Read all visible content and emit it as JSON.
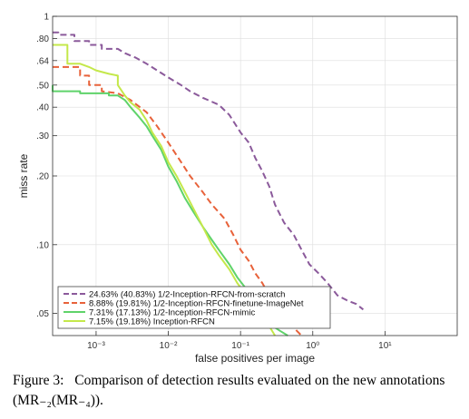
{
  "chart_data": {
    "type": "line",
    "xlabel": "false positives per image",
    "ylabel": "miss rate",
    "x_scale": "log",
    "y_scale": "log",
    "xlim": [
      0.00025,
      100
    ],
    "ylim": [
      0.04,
      1
    ],
    "x_ticks": [
      {
        "value": 0.001,
        "label": "10⁻³"
      },
      {
        "value": 0.01,
        "label": "10⁻²"
      },
      {
        "value": 0.1,
        "label": "10⁻¹"
      },
      {
        "value": 1,
        "label": "10⁰"
      },
      {
        "value": 10,
        "label": "10¹"
      }
    ],
    "y_ticks": [
      {
        "value": 1,
        "label": "1"
      },
      {
        "value": 0.8,
        "label": ".80"
      },
      {
        "value": 0.64,
        "label": ".64"
      },
      {
        "value": 0.5,
        "label": ".50"
      },
      {
        "value": 0.4,
        "label": ".40"
      },
      {
        "value": 0.3,
        "label": ".30"
      },
      {
        "value": 0.2,
        "label": ".20"
      },
      {
        "value": 0.1,
        "label": ".10"
      },
      {
        "value": 0.05,
        "label": ".05"
      }
    ],
    "grid": true,
    "legend_position": "bottom-left",
    "series": [
      {
        "name": "24.63% (40.83%) 1/2-Inception-RFCN-from-scratch",
        "color": "#8b5a9b",
        "dash": "dashed",
        "points": [
          [
            0.00025,
            0.85
          ],
          [
            0.0003,
            0.85
          ],
          [
            0.0003,
            0.83
          ],
          [
            0.0005,
            0.83
          ],
          [
            0.0005,
            0.78
          ],
          [
            0.0008,
            0.78
          ],
          [
            0.0008,
            0.75
          ],
          [
            0.0012,
            0.75
          ],
          [
            0.0012,
            0.72
          ],
          [
            0.002,
            0.72
          ],
          [
            0.0025,
            0.69
          ],
          [
            0.0035,
            0.66
          ],
          [
            0.005,
            0.62
          ],
          [
            0.007,
            0.58
          ],
          [
            0.01,
            0.54
          ],
          [
            0.015,
            0.5
          ],
          [
            0.02,
            0.47
          ],
          [
            0.03,
            0.44
          ],
          [
            0.05,
            0.41
          ],
          [
            0.07,
            0.37
          ],
          [
            0.1,
            0.31
          ],
          [
            0.13,
            0.28
          ],
          [
            0.16,
            0.24
          ],
          [
            0.2,
            0.21
          ],
          [
            0.25,
            0.18
          ],
          [
            0.3,
            0.15
          ],
          [
            0.4,
            0.125
          ],
          [
            0.55,
            0.11
          ],
          [
            0.7,
            0.095
          ],
          [
            0.9,
            0.082
          ],
          [
            1.2,
            0.075
          ],
          [
            1.6,
            0.068
          ],
          [
            2.2,
            0.06
          ],
          [
            3,
            0.057
          ],
          [
            4,
            0.055
          ],
          [
            5,
            0.052
          ]
        ]
      },
      {
        "name": "8.88% (19.81%) 1/2-Inception-RFCN-finetune-ImageNet",
        "color": "#e8623a",
        "dash": "dashed",
        "points": [
          [
            0.00025,
            0.6
          ],
          [
            0.0006,
            0.6
          ],
          [
            0.0006,
            0.55
          ],
          [
            0.0008,
            0.55
          ],
          [
            0.0008,
            0.5
          ],
          [
            0.0012,
            0.5
          ],
          [
            0.0012,
            0.47
          ],
          [
            0.002,
            0.46
          ],
          [
            0.003,
            0.43
          ],
          [
            0.005,
            0.38
          ],
          [
            0.007,
            0.33
          ],
          [
            0.01,
            0.28
          ],
          [
            0.015,
            0.23
          ],
          [
            0.02,
            0.2
          ],
          [
            0.03,
            0.17
          ],
          [
            0.04,
            0.15
          ],
          [
            0.06,
            0.13
          ],
          [
            0.08,
            0.11
          ],
          [
            0.1,
            0.095
          ],
          [
            0.13,
            0.085
          ],
          [
            0.16,
            0.075
          ],
          [
            0.2,
            0.068
          ],
          [
            0.25,
            0.06
          ],
          [
            0.3,
            0.055
          ],
          [
            0.4,
            0.05
          ],
          [
            0.5,
            0.045
          ],
          [
            0.6,
            0.042
          ],
          [
            0.7,
            0.04
          ]
        ]
      },
      {
        "name": "7.31% (17.13%) 1/2-Inception-RFCN-mimic",
        "color": "#5fd36a",
        "dash": "solid",
        "points": [
          [
            0.00025,
            0.5
          ],
          [
            0.00025,
            0.47
          ],
          [
            0.0006,
            0.47
          ],
          [
            0.0006,
            0.46
          ],
          [
            0.0015,
            0.46
          ],
          [
            0.0015,
            0.45
          ],
          [
            0.002,
            0.45
          ],
          [
            0.0025,
            0.43
          ],
          [
            0.003,
            0.4
          ],
          [
            0.004,
            0.36
          ],
          [
            0.005,
            0.33
          ],
          [
            0.006,
            0.3
          ],
          [
            0.008,
            0.26
          ],
          [
            0.01,
            0.22
          ],
          [
            0.013,
            0.19
          ],
          [
            0.017,
            0.16
          ],
          [
            0.022,
            0.14
          ],
          [
            0.03,
            0.12
          ],
          [
            0.04,
            0.105
          ],
          [
            0.05,
            0.095
          ],
          [
            0.07,
            0.082
          ],
          [
            0.09,
            0.072
          ],
          [
            0.12,
            0.064
          ],
          [
            0.15,
            0.058
          ],
          [
            0.2,
            0.05
          ],
          [
            0.25,
            0.045
          ],
          [
            0.35,
            0.042
          ],
          [
            0.45,
            0.04
          ]
        ]
      },
      {
        "name": "7.15% (19.18%) Inception-RFCN",
        "color": "#c4e84a",
        "dash": "solid",
        "points": [
          [
            0.00025,
            0.75
          ],
          [
            0.0004,
            0.75
          ],
          [
            0.0004,
            0.62
          ],
          [
            0.0006,
            0.62
          ],
          [
            0.0008,
            0.6
          ],
          [
            0.001,
            0.58
          ],
          [
            0.0015,
            0.56
          ],
          [
            0.002,
            0.55
          ],
          [
            0.002,
            0.5
          ],
          [
            0.0025,
            0.45
          ],
          [
            0.003,
            0.42
          ],
          [
            0.004,
            0.39
          ],
          [
            0.005,
            0.35
          ],
          [
            0.006,
            0.31
          ],
          [
            0.008,
            0.27
          ],
          [
            0.01,
            0.23
          ],
          [
            0.013,
            0.2
          ],
          [
            0.017,
            0.17
          ],
          [
            0.022,
            0.145
          ],
          [
            0.03,
            0.12
          ],
          [
            0.04,
            0.1
          ],
          [
            0.05,
            0.09
          ],
          [
            0.07,
            0.078
          ],
          [
            0.09,
            0.068
          ],
          [
            0.12,
            0.06
          ],
          [
            0.15,
            0.054
          ],
          [
            0.2,
            0.048
          ],
          [
            0.25,
            0.044
          ],
          [
            0.3,
            0.04
          ]
        ]
      }
    ]
  },
  "caption": {
    "label": "Figure 3:",
    "text": "Comparison of detection results evaluated on the new annotations (MR₋₂(MR₋₄))."
  }
}
